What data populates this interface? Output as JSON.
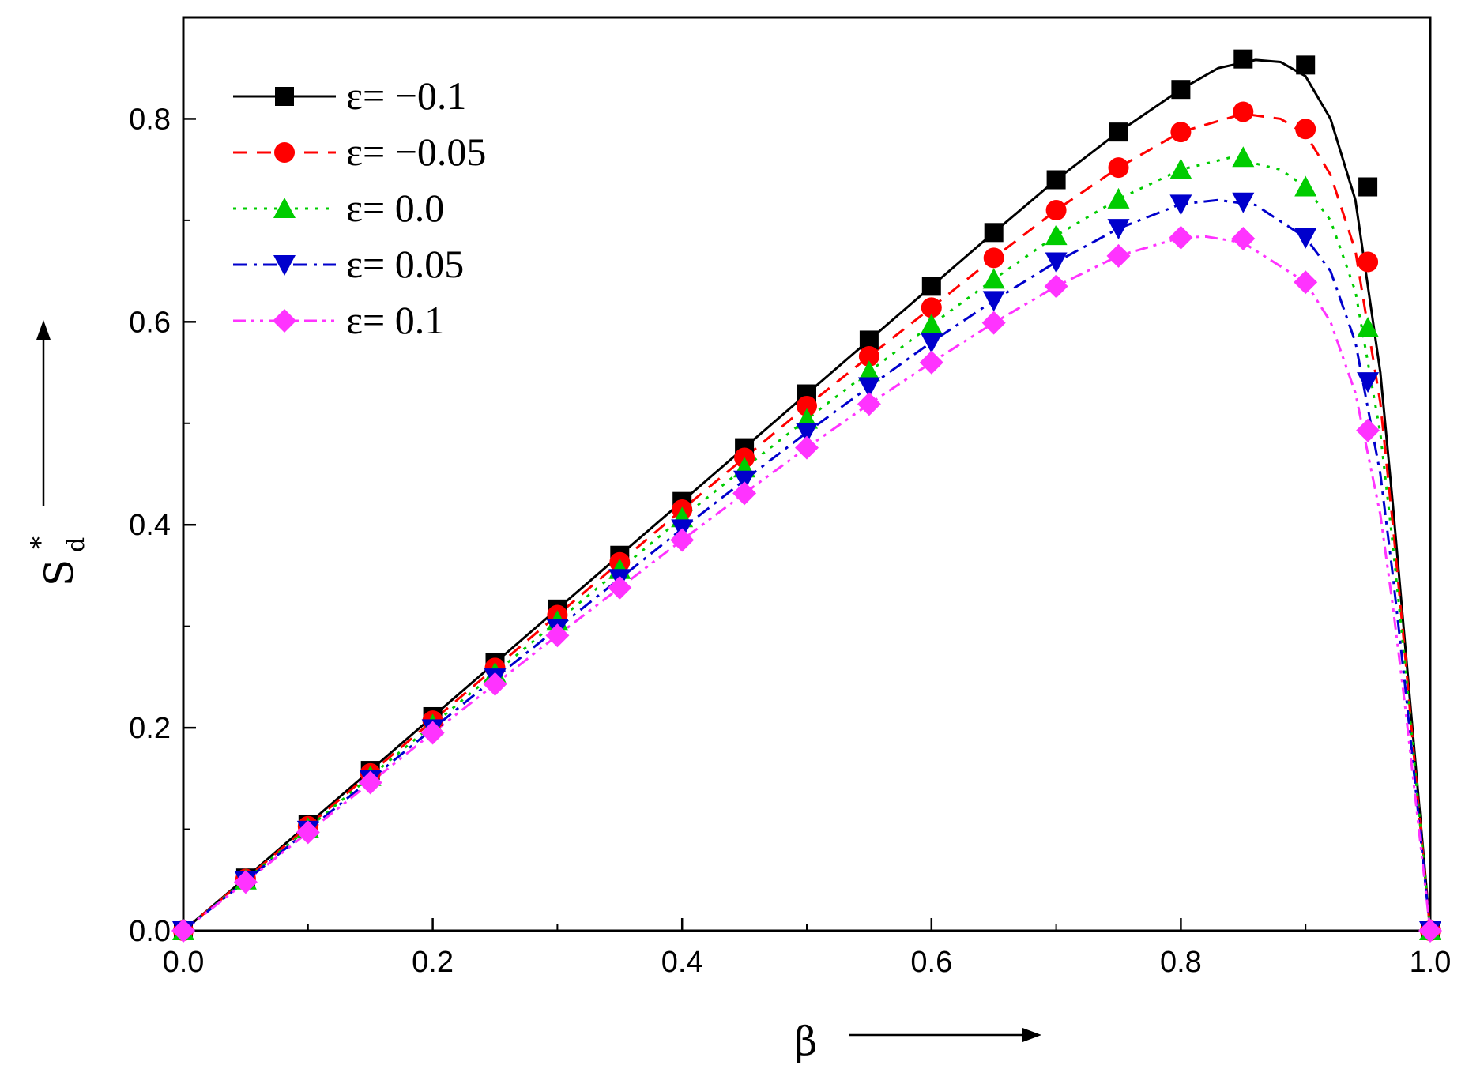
{
  "chart_data": {
    "type": "line",
    "title": "",
    "xlabel": "β",
    "ylabel_main": "S",
    "ylabel_sup": "*",
    "ylabel_sub": "d",
    "xlim": [
      0,
      1.0
    ],
    "ylim": [
      0,
      0.9
    ],
    "x_ticks": [
      "0.0",
      "0.2",
      "0.4",
      "0.6",
      "0.8",
      "1.0"
    ],
    "y_ticks": [
      "0.0",
      "0.2",
      "0.4",
      "0.6",
      "0.8"
    ],
    "grid": false,
    "legend_position": "top-left",
    "x": [
      0.0,
      0.05,
      0.1,
      0.15,
      0.2,
      0.25,
      0.3,
      0.35,
      0.4,
      0.45,
      0.5,
      0.55,
      0.6,
      0.65,
      0.7,
      0.75,
      0.8,
      0.85,
      0.9,
      0.95,
      1.0
    ],
    "series": [
      {
        "name": "ε= −0.1",
        "color": "#000000",
        "marker": "square",
        "dash": "solid",
        "markers": [
          0.0,
          0.052,
          0.105,
          0.158,
          0.211,
          0.264,
          0.317,
          0.37,
          0.423,
          0.476,
          0.529,
          0.582,
          0.635,
          0.688,
          0.74,
          0.787,
          0.829,
          0.859,
          0.853,
          0.733,
          0.0
        ],
        "curve_x": [
          0,
          0.05,
          0.1,
          0.15,
          0.2,
          0.25,
          0.3,
          0.35,
          0.4,
          0.45,
          0.5,
          0.55,
          0.6,
          0.65,
          0.7,
          0.75,
          0.8,
          0.83,
          0.86,
          0.88,
          0.9,
          0.92,
          0.94,
          0.96,
          0.97,
          0.98,
          0.99,
          1.0
        ],
        "curve_y": [
          0,
          0.052,
          0.105,
          0.158,
          0.211,
          0.264,
          0.317,
          0.37,
          0.423,
          0.476,
          0.529,
          0.582,
          0.635,
          0.688,
          0.74,
          0.787,
          0.829,
          0.85,
          0.858,
          0.856,
          0.842,
          0.8,
          0.72,
          0.55,
          0.42,
          0.28,
          0.14,
          0.0
        ]
      },
      {
        "name": "ε= −0.05",
        "color": "#ff0000",
        "marker": "circle",
        "dash": "dashed",
        "markers": [
          0.0,
          0.051,
          0.103,
          0.155,
          0.207,
          0.259,
          0.311,
          0.363,
          0.415,
          0.466,
          0.517,
          0.566,
          0.614,
          0.663,
          0.71,
          0.752,
          0.787,
          0.807,
          0.79,
          0.659,
          0.0
        ],
        "curve_x": [
          0,
          0.05,
          0.1,
          0.15,
          0.2,
          0.25,
          0.3,
          0.35,
          0.4,
          0.45,
          0.5,
          0.55,
          0.6,
          0.65,
          0.7,
          0.75,
          0.8,
          0.85,
          0.88,
          0.9,
          0.92,
          0.94,
          0.96,
          0.97,
          0.98,
          0.99,
          1.0
        ],
        "curve_y": [
          0,
          0.051,
          0.103,
          0.155,
          0.207,
          0.259,
          0.311,
          0.363,
          0.415,
          0.466,
          0.517,
          0.566,
          0.614,
          0.663,
          0.71,
          0.752,
          0.787,
          0.805,
          0.8,
          0.785,
          0.745,
          0.67,
          0.52,
          0.4,
          0.27,
          0.13,
          0.0
        ]
      },
      {
        "name": "ε= 0.0",
        "color": "#00cc00",
        "marker": "triangle-up",
        "dash": "dotted",
        "markers": [
          0.0,
          0.05,
          0.101,
          0.152,
          0.203,
          0.254,
          0.305,
          0.356,
          0.407,
          0.456,
          0.504,
          0.551,
          0.597,
          0.642,
          0.685,
          0.721,
          0.75,
          0.762,
          0.733,
          0.594,
          0.0
        ],
        "curve_x": [
          0,
          0.05,
          0.1,
          0.15,
          0.2,
          0.25,
          0.3,
          0.35,
          0.4,
          0.45,
          0.5,
          0.55,
          0.6,
          0.65,
          0.7,
          0.75,
          0.8,
          0.84,
          0.88,
          0.9,
          0.92,
          0.94,
          0.96,
          0.97,
          0.98,
          0.99,
          1.0
        ],
        "curve_y": [
          0,
          0.05,
          0.101,
          0.152,
          0.203,
          0.254,
          0.305,
          0.356,
          0.407,
          0.456,
          0.504,
          0.551,
          0.597,
          0.642,
          0.685,
          0.721,
          0.75,
          0.762,
          0.75,
          0.733,
          0.7,
          0.63,
          0.49,
          0.38,
          0.26,
          0.13,
          0.0
        ]
      },
      {
        "name": "ε= 0.05",
        "color": "#0000cc",
        "marker": "triangle-down",
        "dash": "dashdot",
        "markers": [
          0.0,
          0.049,
          0.099,
          0.149,
          0.199,
          0.249,
          0.298,
          0.347,
          0.396,
          0.444,
          0.491,
          0.536,
          0.58,
          0.621,
          0.659,
          0.692,
          0.716,
          0.718,
          0.683,
          0.541,
          0.0
        ],
        "curve_x": [
          0,
          0.05,
          0.1,
          0.15,
          0.2,
          0.25,
          0.3,
          0.35,
          0.4,
          0.45,
          0.5,
          0.55,
          0.6,
          0.65,
          0.7,
          0.75,
          0.8,
          0.83,
          0.86,
          0.9,
          0.92,
          0.94,
          0.96,
          0.97,
          0.98,
          0.99,
          1.0
        ],
        "curve_y": [
          0,
          0.049,
          0.099,
          0.149,
          0.199,
          0.249,
          0.298,
          0.347,
          0.396,
          0.444,
          0.491,
          0.536,
          0.58,
          0.621,
          0.659,
          0.692,
          0.716,
          0.72,
          0.715,
          0.683,
          0.65,
          0.58,
          0.45,
          0.35,
          0.24,
          0.12,
          0.0
        ]
      },
      {
        "name": "ε= 0.1",
        "color": "#ff33ff",
        "marker": "diamond",
        "dash": "dashdotdot",
        "markers": [
          0.0,
          0.048,
          0.097,
          0.146,
          0.195,
          0.243,
          0.291,
          0.338,
          0.385,
          0.431,
          0.476,
          0.519,
          0.56,
          0.599,
          0.635,
          0.665,
          0.683,
          0.682,
          0.639,
          0.493,
          0.0
        ],
        "curve_x": [
          0,
          0.05,
          0.1,
          0.15,
          0.2,
          0.25,
          0.3,
          0.35,
          0.4,
          0.45,
          0.5,
          0.55,
          0.6,
          0.65,
          0.7,
          0.75,
          0.8,
          0.82,
          0.85,
          0.9,
          0.92,
          0.94,
          0.96,
          0.97,
          0.98,
          0.99,
          1.0
        ],
        "curve_y": [
          0,
          0.048,
          0.097,
          0.146,
          0.195,
          0.243,
          0.291,
          0.338,
          0.385,
          0.431,
          0.476,
          0.519,
          0.56,
          0.599,
          0.635,
          0.665,
          0.683,
          0.684,
          0.678,
          0.639,
          0.6,
          0.53,
          0.41,
          0.32,
          0.22,
          0.11,
          0.0
        ]
      }
    ]
  }
}
